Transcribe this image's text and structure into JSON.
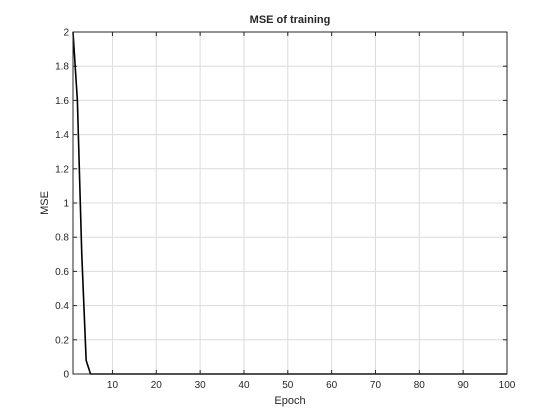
{
  "chart_data": {
    "type": "line",
    "title": "MSE of training",
    "xlabel": "Epoch",
    "ylabel": "MSE",
    "xlim": [
      1,
      100
    ],
    "ylim": [
      0,
      2
    ],
    "xticks": [
      10,
      20,
      30,
      40,
      50,
      60,
      70,
      80,
      90,
      100
    ],
    "yticks": [
      0,
      0.2,
      0.4,
      0.6,
      0.8,
      1,
      1.2,
      1.4,
      1.6,
      1.8,
      2
    ],
    "grid": true,
    "series": [
      {
        "color": "#000000",
        "x": [
          1,
          2,
          3,
          4,
          5,
          6,
          10,
          20,
          30,
          40,
          50,
          60,
          70,
          80,
          90,
          100
        ],
        "y": [
          2.0,
          1.6,
          0.7,
          0.08,
          0.0,
          0.0,
          0.0,
          0.0,
          0.0,
          0.0,
          0.0,
          0.0,
          0.0,
          0.0,
          0.0,
          0.0
        ]
      }
    ]
  }
}
